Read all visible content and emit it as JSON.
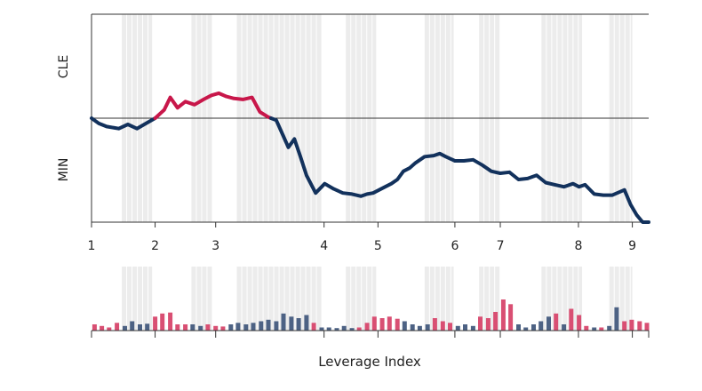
{
  "chart_data": {
    "type": "line",
    "xlabel": "Leverage Index",
    "y_top_label": "CLE",
    "y_bottom_label": "MIN",
    "x_ticks": [
      "1",
      "2",
      "3",
      "4",
      "5",
      "6",
      "7",
      "8",
      "9"
    ],
    "x_tick_positions": [
      0,
      1.05,
      2.05,
      3.84,
      4.73,
      6.0,
      6.75,
      8.04,
      8.93
    ],
    "xlim": [
      0,
      9.2
    ],
    "ylim": [
      -1,
      1
    ],
    "baseline": 0,
    "shaded_bands": [
      [
        0.5,
        1.0
      ],
      [
        1.65,
        2.0
      ],
      [
        2.4,
        3.8
      ],
      [
        4.2,
        4.7
      ],
      [
        5.5,
        5.98
      ],
      [
        6.4,
        6.75
      ],
      [
        7.43,
        8.1
      ],
      [
        8.55,
        8.93
      ]
    ],
    "series": [
      {
        "x": [
          0,
          0.12,
          0.25,
          0.45,
          0.6,
          0.75,
          0.9,
          1.05,
          1.2,
          1.3,
          1.42,
          1.55,
          1.7,
          1.85,
          1.98,
          2.1,
          2.22,
          2.35,
          2.5,
          2.65,
          2.78,
          2.92,
          3.05,
          3.15,
          3.25,
          3.35,
          3.45,
          3.55,
          3.7,
          3.85,
          4.0,
          4.15,
          4.3,
          4.45,
          4.55,
          4.65,
          4.75,
          4.85,
          4.95,
          5.05,
          5.15,
          5.25,
          5.35,
          5.5,
          5.65,
          5.75,
          5.85,
          6.0,
          6.15,
          6.3,
          6.45,
          6.6,
          6.75,
          6.9,
          7.05,
          7.2,
          7.35,
          7.5,
          7.65,
          7.8,
          7.95,
          8.05,
          8.15,
          8.3,
          8.45,
          8.6,
          8.8,
          8.9,
          9.0,
          9.1,
          9.2
        ],
        "y": [
          0,
          -0.05,
          -0.08,
          -0.1,
          -0.06,
          -0.1,
          -0.05,
          0,
          0.08,
          0.2,
          0.1,
          0.16,
          0.13,
          0.18,
          0.22,
          0.24,
          0.21,
          0.19,
          0.18,
          0.2,
          0.06,
          0.01,
          -0.02,
          -0.15,
          -0.28,
          -0.2,
          -0.37,
          -0.55,
          -0.72,
          -0.63,
          -0.68,
          -0.72,
          -0.73,
          -0.75,
          -0.73,
          -0.72,
          -0.69,
          -0.66,
          -0.63,
          -0.59,
          -0.51,
          -0.48,
          -0.43,
          -0.37,
          -0.36,
          -0.34,
          -0.37,
          -0.41,
          -0.41,
          -0.4,
          -0.45,
          -0.51,
          -0.53,
          -0.52,
          -0.59,
          -0.58,
          -0.55,
          -0.62,
          -0.64,
          -0.66,
          -0.63,
          -0.66,
          -0.64,
          -0.73,
          -0.74,
          -0.74,
          -0.69,
          -0.83,
          -0.93,
          -1.0,
          -1.0
        ]
      }
    ],
    "colors": {
      "positive": "#c8174a",
      "negative": "#12315c",
      "shade": "#ececec",
      "bar_positive": "#d94f73",
      "bar_negative": "#4d6284"
    },
    "bars": {
      "x": [
        0.05,
        0.17,
        0.29,
        0.42,
        0.55,
        0.67,
        0.8,
        0.92,
        1.05,
        1.17,
        1.3,
        1.42,
        1.55,
        1.67,
        1.8,
        1.92,
        2.05,
        2.17,
        2.3,
        2.42,
        2.55,
        2.67,
        2.8,
        2.92,
        3.05,
        3.17,
        3.3,
        3.42,
        3.55,
        3.67,
        3.8,
        3.92,
        4.05,
        4.17,
        4.3,
        4.42,
        4.55,
        4.67,
        4.8,
        4.92,
        5.05,
        5.17,
        5.3,
        5.42,
        5.55,
        5.67,
        5.8,
        5.92,
        6.05,
        6.17,
        6.3,
        6.42,
        6.55,
        6.67,
        6.8,
        6.92,
        7.05,
        7.17,
        7.3,
        7.42,
        7.55,
        7.67,
        7.8,
        7.92,
        8.05,
        8.17,
        8.3,
        8.42,
        8.55,
        8.67,
        8.8,
        8.92,
        9.05,
        9.17
      ],
      "values": [
        0.2,
        0.15,
        0.1,
        0.25,
        0.15,
        0.3,
        0.2,
        0.22,
        0.45,
        0.55,
        0.58,
        0.2,
        0.2,
        0.2,
        0.15,
        0.2,
        0.15,
        0.13,
        0.2,
        0.25,
        0.2,
        0.25,
        0.3,
        0.35,
        0.3,
        0.55,
        0.45,
        0.4,
        0.5,
        0.25,
        0.1,
        0.1,
        0.08,
        0.15,
        0.08,
        0.1,
        0.25,
        0.45,
        0.4,
        0.45,
        0.38,
        0.3,
        0.2,
        0.15,
        0.2,
        0.4,
        0.3,
        0.25,
        0.15,
        0.2,
        0.15,
        0.45,
        0.4,
        0.6,
        1.0,
        0.85,
        0.2,
        0.1,
        0.2,
        0.3,
        0.45,
        0.55,
        0.2,
        0.7,
        0.5,
        0.15,
        0.1,
        0.1,
        0.15,
        0.75,
        0.3,
        0.35,
        0.3,
        0.25
      ],
      "signs": [
        1,
        1,
        1,
        1,
        -1,
        -1,
        -1,
        -1,
        1,
        1,
        1,
        1,
        1,
        -1,
        -1,
        1,
        1,
        1,
        -1,
        -1,
        -1,
        -1,
        -1,
        -1,
        -1,
        -1,
        -1,
        -1,
        -1,
        1,
        -1,
        -1,
        -1,
        -1,
        -1,
        1,
        1,
        1,
        1,
        1,
        1,
        -1,
        -1,
        -1,
        -1,
        1,
        1,
        1,
        -1,
        -1,
        -1,
        1,
        1,
        1,
        1,
        1,
        -1,
        -1,
        -1,
        -1,
        -1,
        1,
        -1,
        1,
        1,
        1,
        -1,
        1,
        -1,
        -1,
        1,
        1,
        1,
        1
      ]
    },
    "grid": false,
    "legend": "none"
  }
}
